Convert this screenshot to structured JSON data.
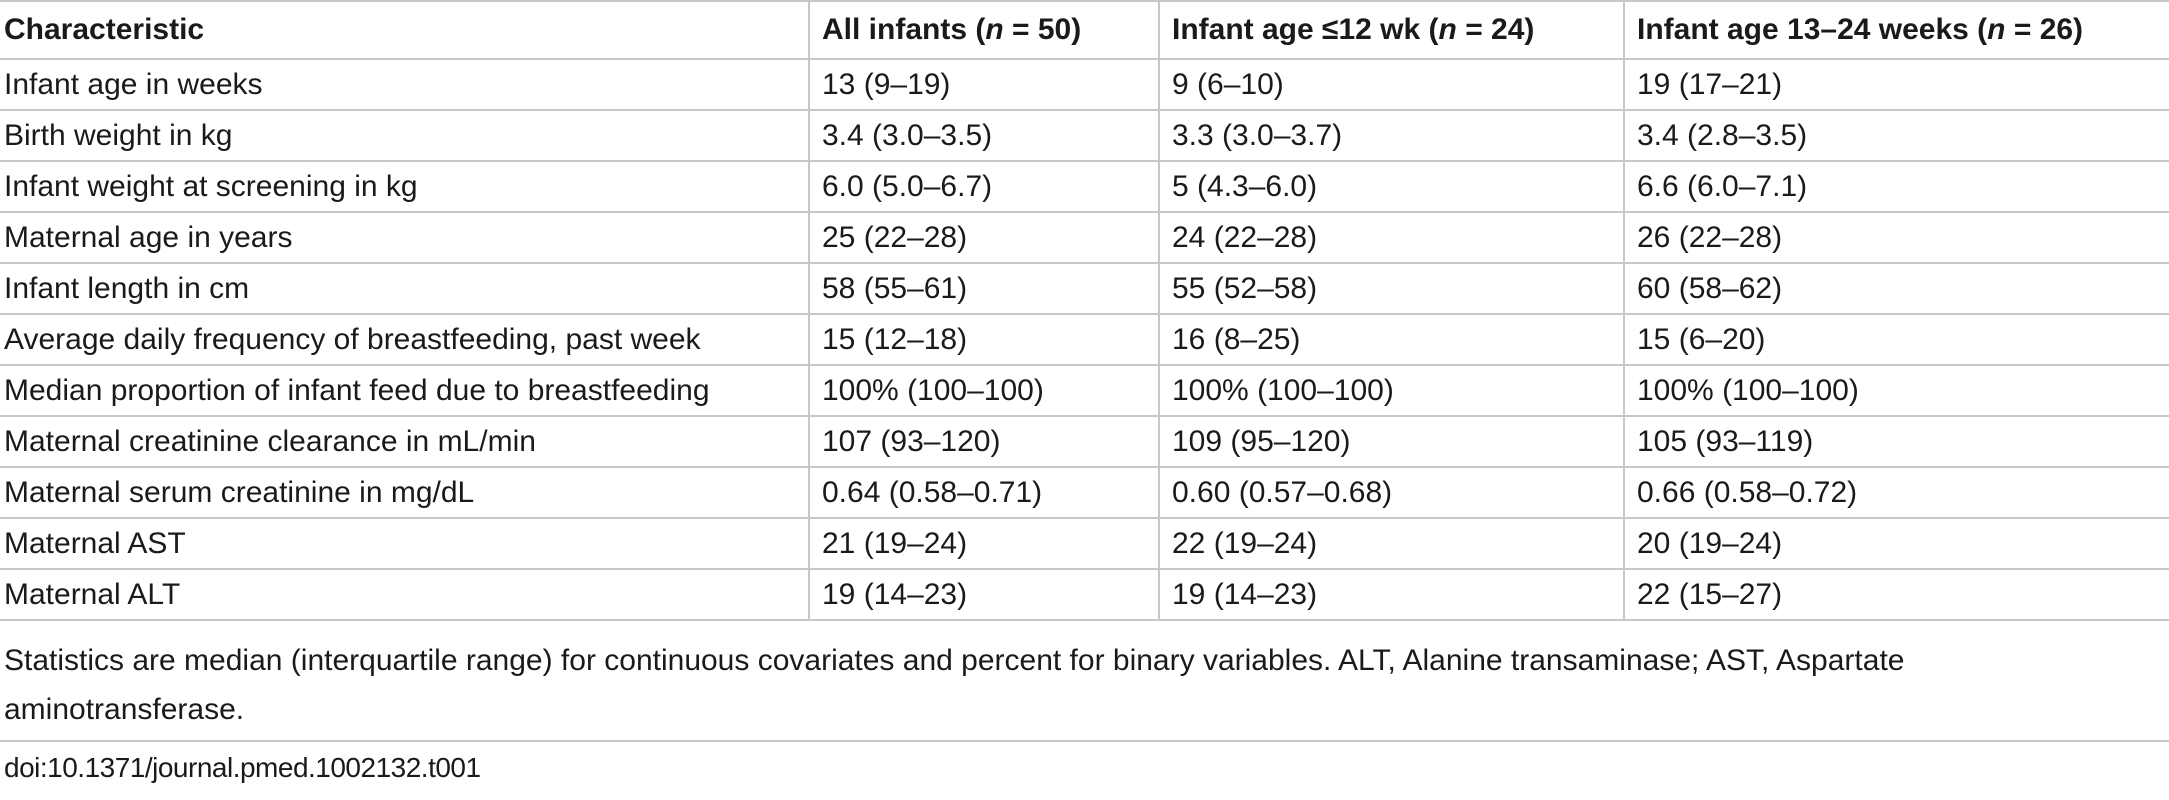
{
  "table": {
    "headers": {
      "characteristic": "Characteristic",
      "all": {
        "prefix": "All infants (",
        "n": "n",
        "suffix": " = 50)"
      },
      "young": {
        "prefix": "Infant age ≤12 wk (",
        "n": "n",
        "suffix": " = 24)"
      },
      "older": {
        "prefix": "Infant age 13–24 weeks (",
        "n": "n",
        "suffix": " = 26)"
      }
    },
    "rows": [
      [
        "Infant age in weeks",
        "13 (9–19)",
        "9 (6–10)",
        "19 (17–21)"
      ],
      [
        "Birth weight in kg",
        "3.4 (3.0–3.5)",
        "3.3 (3.0–3.7)",
        "3.4 (2.8–3.5)"
      ],
      [
        "Infant weight at screening in kg",
        "6.0 (5.0–6.7)",
        "5 (4.3–6.0)",
        "6.6 (6.0–7.1)"
      ],
      [
        "Maternal age in years",
        "25 (22–28)",
        "24 (22–28)",
        "26 (22–28)"
      ],
      [
        "Infant length in cm",
        "58 (55–61)",
        "55 (52–58)",
        "60 (58–62)"
      ],
      [
        "Average daily frequency of breastfeeding, past week",
        "15 (12–18)",
        "16 (8–25)",
        "15 (6–20)"
      ],
      [
        "Median proportion of infant feed due to breastfeeding",
        "100% (100–100)",
        "100% (100–100)",
        "100% (100–100)"
      ],
      [
        "Maternal creatinine clearance in mL/min",
        "107 (93–120)",
        "109 (95–120)",
        "105 (93–119)"
      ],
      [
        "Maternal serum creatinine in mg/dL",
        "0.64 (0.58–0.71)",
        "0.60 (0.57–0.68)",
        "0.66 (0.58–0.72)"
      ],
      [
        "Maternal AST",
        "21 (19–24)",
        "22 (19–24)",
        "20 (19–24)"
      ],
      [
        "Maternal ALT",
        "19 (14–23)",
        "19 (14–23)",
        "22 (15–27)"
      ]
    ]
  },
  "footnote": "Statistics are median (interquartile range) for continuous covariates and percent for binary variables. ALT, Alanine transaminase; AST, Aspartate aminotransferase.",
  "doi": "doi:10.1371/journal.pmed.1002132.t001"
}
